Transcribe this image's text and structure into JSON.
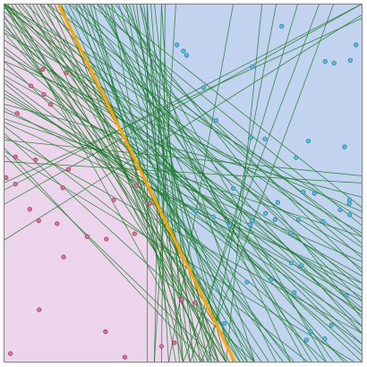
{
  "chart_data": {
    "type": "scatter",
    "title": "",
    "xlabel": "",
    "ylabel": "",
    "xlim": [
      0,
      100
    ],
    "ylim": [
      0,
      100
    ],
    "grid": false,
    "colors": {
      "region_a": "#ecd5ec",
      "region_b": "#c2d3f0",
      "class_a_fill": "#d27a9a",
      "class_a_edge": "#a83d5c",
      "class_b_fill": "#5cc0d6",
      "class_b_edge": "#2a7fa6",
      "hypothesis_line": "#1f7a2a",
      "best_line": "#ffa500",
      "frame": "#7f7f7f"
    },
    "decision_boundary": {
      "x_at_top": 15.2,
      "x_at_bottom": 64.5
    },
    "series": [
      {
        "name": "class_a",
        "points": [
          [
            7.6,
            77.1
          ],
          [
            10.9,
            81.7
          ],
          [
            13.1,
            71.9
          ],
          [
            17.5,
            80.7
          ],
          [
            11.2,
            74.7
          ],
          [
            3.8,
            69.4
          ],
          [
            3.3,
            57.3
          ],
          [
            8.9,
            56.5
          ],
          [
            0.7,
            51.5
          ],
          [
            3.3,
            49.7
          ],
          [
            18.1,
            53.8
          ],
          [
            16.5,
            48.7
          ],
          [
            7.3,
            42.7
          ],
          [
            9.8,
            39.5
          ],
          [
            14.9,
            38.7
          ],
          [
            23.3,
            35.1
          ],
          [
            28.6,
            34.4
          ],
          [
            30.7,
            45.3
          ],
          [
            36.5,
            35.9
          ],
          [
            40.7,
            44.3
          ],
          [
            37.0,
            49.3
          ],
          [
            16.7,
            29.4
          ],
          [
            49.7,
            17.5
          ],
          [
            53.4,
            16.7
          ],
          [
            9.9,
            14.7
          ],
          [
            28.4,
            8.6
          ],
          [
            44.0,
            4.5
          ],
          [
            47.6,
            5.5
          ],
          [
            1.9,
            2.5
          ],
          [
            33.8,
            1.5
          ]
        ]
      },
      {
        "name": "class_b",
        "points": [
          [
            77.5,
            93.7
          ],
          [
            48.3,
            88.5
          ],
          [
            50.1,
            86.8
          ],
          [
            51.0,
            85.6
          ],
          [
            89.6,
            83.9
          ],
          [
            92.1,
            83.4
          ],
          [
            96.6,
            84.2
          ],
          [
            98.2,
            88.5
          ],
          [
            69.3,
            82.4
          ],
          [
            55.7,
            76.6
          ],
          [
            59.2,
            67.5
          ],
          [
            68.9,
            62.6
          ],
          [
            72.8,
            62.3
          ],
          [
            84.9,
            61.7
          ],
          [
            95.0,
            60.1
          ],
          [
            81.5,
            57.1
          ],
          [
            64.0,
            48.5
          ],
          [
            83.5,
            47.5
          ],
          [
            86.6,
            47.1
          ],
          [
            96.4,
            45.3
          ],
          [
            96.3,
            44.3
          ],
          [
            93.8,
            42.5
          ],
          [
            76.4,
            44.6
          ],
          [
            73.0,
            41.6
          ],
          [
            96.4,
            41.2
          ],
          [
            82.2,
            39.8
          ],
          [
            89.0,
            39.3
          ],
          [
            75.6,
            39.8
          ],
          [
            69.2,
            39.6
          ],
          [
            80.0,
            36.0
          ],
          [
            68.6,
            38.4
          ],
          [
            53.6,
            42.2
          ],
          [
            58.4,
            40.6
          ],
          [
            63.0,
            38.2
          ],
          [
            83.0,
            27.0
          ],
          [
            80.2,
            27.7
          ],
          [
            95.5,
            18.7
          ],
          [
            81.0,
            19.5
          ],
          [
            91.3,
            10.4
          ],
          [
            89.5,
            6.6
          ],
          [
            84.4,
            6.3
          ],
          [
            85.5,
            8.6
          ],
          [
            61.5,
            10.9
          ],
          [
            74.5,
            23.1
          ],
          [
            67.8,
            22.4
          ]
        ]
      }
    ],
    "hypothesis_lines_endpoints": [
      [
        0,
        92,
        81,
        0
      ],
      [
        5,
        100,
        78,
        0
      ],
      [
        10,
        100,
        74,
        0
      ],
      [
        20,
        100,
        56,
        0
      ],
      [
        25,
        100,
        50,
        0
      ],
      [
        30,
        100,
        48,
        0
      ],
      [
        40,
        100,
        46,
        0
      ],
      [
        45,
        100,
        44,
        0
      ],
      [
        48,
        100,
        42,
        0
      ],
      [
        18,
        100,
        70,
        0
      ],
      [
        22,
        100,
        60,
        0
      ],
      [
        28,
        100,
        68,
        0
      ],
      [
        35,
        100,
        62,
        0
      ],
      [
        12,
        100,
        88,
        0
      ],
      [
        38,
        100,
        58,
        0
      ],
      [
        0,
        96,
        100,
        15
      ],
      [
        0,
        90,
        100,
        22
      ],
      [
        0,
        86,
        100,
        30
      ],
      [
        0,
        82,
        100,
        18
      ],
      [
        0,
        80,
        100,
        24
      ],
      [
        0,
        76,
        100,
        10
      ],
      [
        0,
        74,
        100,
        20
      ],
      [
        0,
        88,
        100,
        13
      ],
      [
        0,
        70,
        100,
        28
      ],
      [
        0,
        68,
        100,
        35
      ],
      [
        0,
        98,
        100,
        5
      ],
      [
        0,
        94,
        100,
        0
      ],
      [
        0,
        78,
        96,
        0
      ],
      [
        0,
        84,
        90,
        0
      ],
      [
        0,
        66,
        85,
        0
      ],
      [
        0,
        100,
        66,
        0
      ],
      [
        0,
        100,
        72,
        0
      ],
      [
        3,
        100,
        80,
        0
      ],
      [
        8,
        100,
        63,
        0
      ],
      [
        14,
        100,
        66,
        0
      ],
      [
        16,
        100,
        54,
        0
      ],
      [
        24,
        100,
        52,
        0
      ],
      [
        27,
        100,
        76,
        0
      ],
      [
        32,
        100,
        64,
        0
      ],
      [
        36,
        100,
        57,
        0
      ],
      [
        42,
        100,
        53,
        0
      ],
      [
        4,
        100,
        95,
        0
      ],
      [
        6,
        100,
        100,
        10
      ],
      [
        10,
        100,
        100,
        20
      ],
      [
        15,
        100,
        100,
        17
      ],
      [
        19,
        100,
        100,
        8
      ],
      [
        26,
        100,
        100,
        25
      ],
      [
        31,
        100,
        100,
        12
      ],
      [
        33,
        100,
        90,
        0
      ],
      [
        44,
        100,
        50,
        0
      ],
      [
        0,
        100,
        100,
        40
      ],
      [
        0,
        100,
        100,
        32
      ],
      [
        0,
        99,
        100,
        26
      ],
      [
        0,
        92,
        100,
        36
      ],
      [
        0,
        84,
        100,
        42
      ],
      [
        0,
        72,
        100,
        46
      ],
      [
        0,
        62,
        100,
        52
      ],
      [
        0,
        56,
        100,
        50
      ],
      [
        0,
        48,
        100,
        100
      ],
      [
        0,
        34,
        100,
        97
      ],
      [
        0,
        50,
        100,
        96
      ],
      [
        42,
        0,
        44,
        100
      ],
      [
        57,
        0,
        76,
        100
      ],
      [
        62,
        0,
        72,
        100
      ],
      [
        46,
        0,
        64,
        100
      ],
      [
        50,
        0,
        88,
        100
      ],
      [
        52,
        0,
        82,
        100
      ],
      [
        55,
        0,
        92,
        100
      ],
      [
        40,
        0,
        40,
        100
      ],
      [
        0,
        44,
        100,
        100
      ],
      [
        0,
        60,
        56,
        0
      ],
      [
        0,
        58,
        60,
        0
      ],
      [
        0,
        64,
        70,
        0
      ],
      [
        2,
        100,
        62,
        0
      ],
      [
        7,
        100,
        58,
        0
      ],
      [
        11,
        100,
        60,
        0
      ],
      [
        13,
        100,
        57,
        0
      ],
      [
        17,
        100,
        62,
        0
      ],
      [
        21,
        100,
        59,
        0
      ],
      [
        23,
        100,
        64,
        0
      ],
      [
        29,
        100,
        60,
        0
      ],
      [
        34,
        100,
        55,
        0
      ],
      [
        37,
        100,
        50,
        0
      ],
      [
        39,
        100,
        52,
        0
      ],
      [
        41,
        100,
        49,
        0
      ],
      [
        0,
        100,
        55,
        0
      ],
      [
        0,
        97,
        62,
        0
      ],
      [
        0,
        95,
        68,
        0
      ],
      [
        1,
        100,
        70,
        0
      ],
      [
        9,
        100,
        67,
        0
      ],
      [
        0,
        100,
        100,
        3
      ],
      [
        0,
        100,
        100,
        14
      ],
      [
        0,
        93,
        100,
        8
      ],
      [
        0,
        87,
        100,
        2
      ],
      [
        0,
        79,
        100,
        5
      ],
      [
        0,
        75,
        100,
        14
      ],
      [
        0,
        71,
        100,
        17
      ],
      [
        0,
        67,
        100,
        22
      ],
      [
        0,
        63,
        100,
        8
      ],
      [
        0,
        59,
        98,
        0
      ],
      [
        20,
        100,
        100,
        33
      ],
      [
        24,
        100,
        100,
        38
      ],
      [
        28,
        100,
        100,
        43
      ],
      [
        18,
        100,
        100,
        29
      ],
      [
        12,
        100,
        100,
        35
      ],
      [
        22,
        100,
        92,
        0
      ],
      [
        26,
        100,
        86,
        0
      ],
      [
        30,
        100,
        84,
        0
      ],
      [
        34,
        100,
        80,
        0
      ],
      [
        38,
        100,
        70,
        0
      ]
    ]
  }
}
